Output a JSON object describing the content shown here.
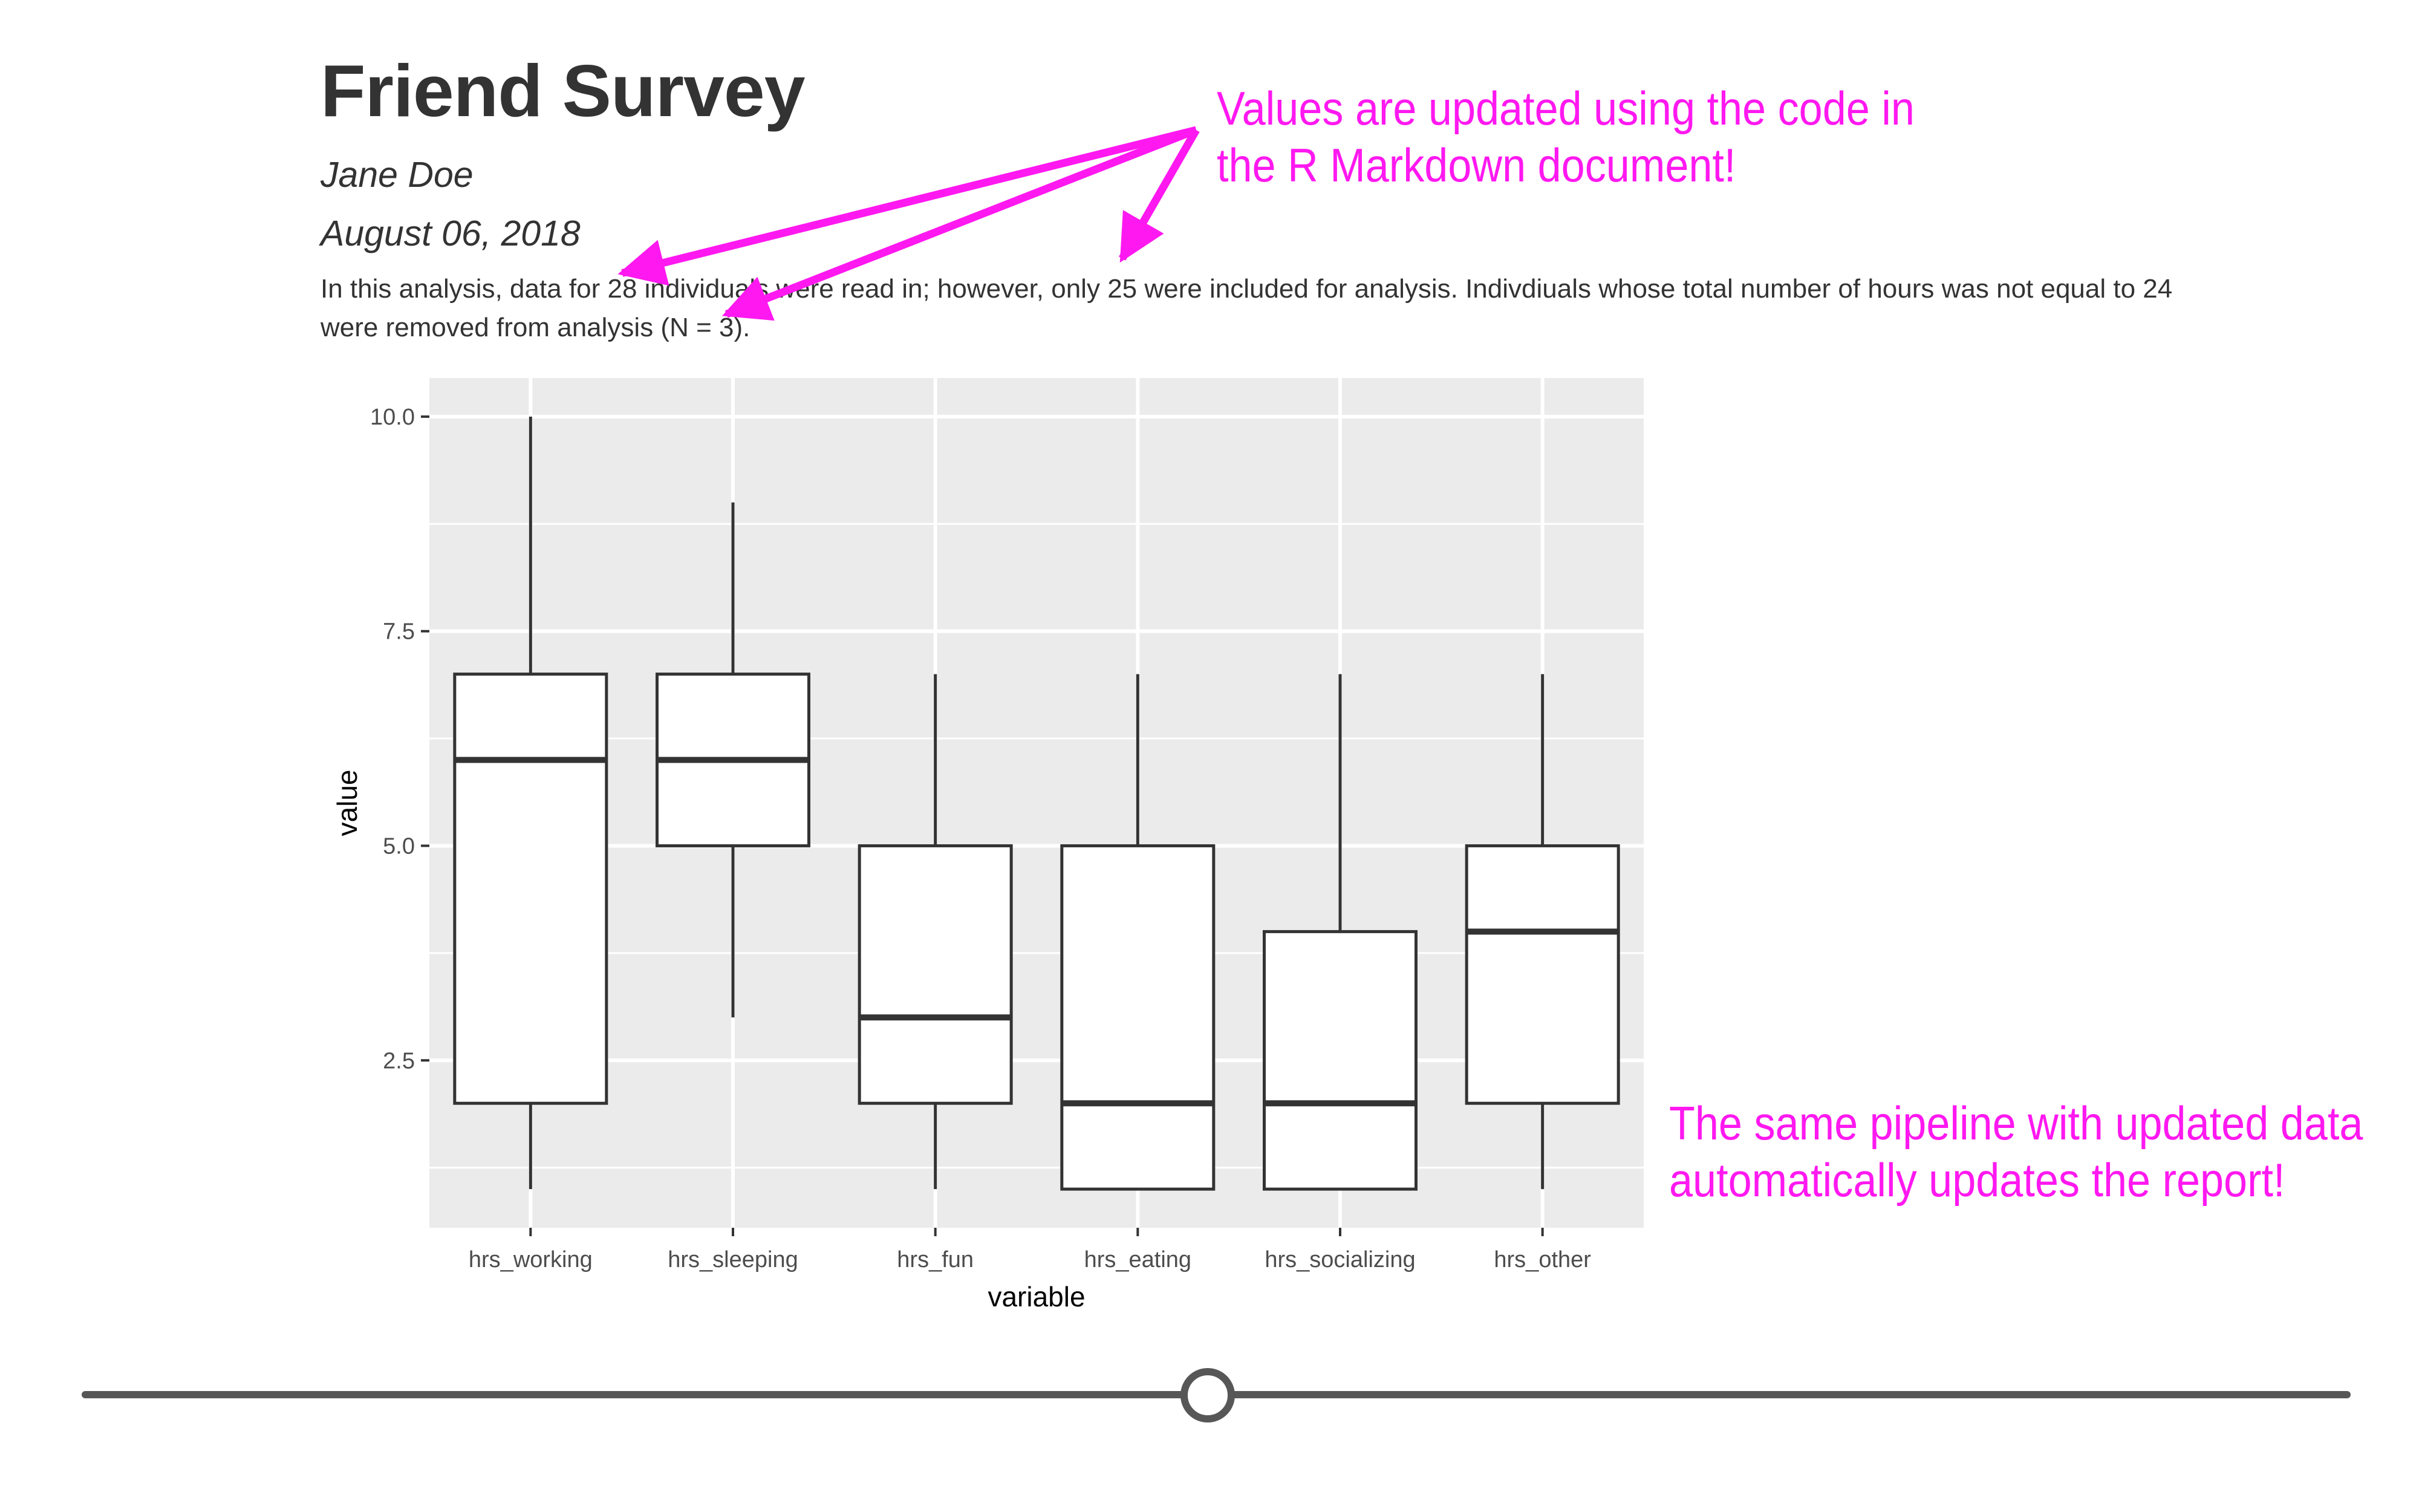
{
  "document": {
    "title": "Friend Survey",
    "author": "Jane Doe",
    "date": "August 06, 2018",
    "paragraph": {
      "p1": "In this analysis, data for ",
      "n_read": "28",
      "p2": " individuals were read in; however, only ",
      "n_included": "25",
      "p3": " were included for analysis. Indivdiuals whose total number of hours was not equal to 24 were removed from analysis (N = ",
      "n_removed": "3",
      "p4": ")."
    }
  },
  "annotations": {
    "top_line1": "Values are updated using the code in",
    "top_line2": "the R Markdown document!",
    "right_line1": "The same pipeline with updated data",
    "right_line2": "automatically updates the report!",
    "color": "#ff18f0"
  },
  "chart_data": {
    "type": "boxplot",
    "xlabel": "variable",
    "ylabel": "value",
    "ylim": [
      0.55,
      10.45
    ],
    "yticks": [
      2.5,
      5.0,
      7.5,
      10.0
    ],
    "ytick_labels": [
      "2.5",
      "5.0",
      "7.5",
      "10.0"
    ],
    "categories": [
      "hrs_working",
      "hrs_sleeping",
      "hrs_fun",
      "hrs_eating",
      "hrs_socializing",
      "hrs_other"
    ],
    "boxes": [
      {
        "min": 1,
        "q1": 2,
        "median": 6,
        "q3": 7,
        "max": 10
      },
      {
        "min": 3,
        "q1": 5,
        "median": 6,
        "q3": 7,
        "max": 9
      },
      {
        "min": 1,
        "q1": 2,
        "median": 3,
        "q3": 5,
        "max": 7
      },
      {
        "min": 1,
        "q1": 1,
        "median": 2,
        "q3": 5,
        "max": 7
      },
      {
        "min": 1,
        "q1": 1,
        "median": 2,
        "q3": 4,
        "max": 7
      },
      {
        "min": 1,
        "q1": 2,
        "median": 4,
        "q3": 5,
        "max": 7
      }
    ],
    "panel_background": "#ebebeb",
    "grid": true,
    "box_color": "#333333"
  },
  "slider": {
    "track_color": "#575757"
  }
}
